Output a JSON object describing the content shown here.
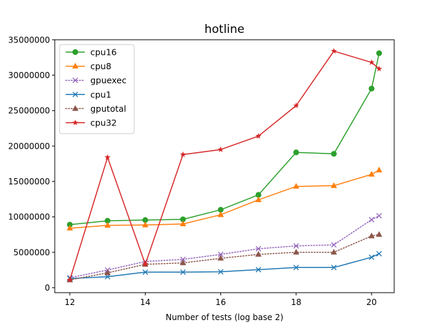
{
  "chart_data": {
    "type": "line",
    "title": "hotline",
    "xlabel": "Number of tests (log base 2)",
    "ylabel": "",
    "xlim": [
      11.6,
      20.6
    ],
    "ylim": [
      -700000,
      35000000
    ],
    "xticks": [
      12,
      14,
      16,
      18,
      20
    ],
    "yticks": [
      0,
      5000000,
      10000000,
      15000000,
      20000000,
      25000000,
      30000000,
      35000000
    ],
    "grid": false,
    "legend_position": "upper left",
    "series": [
      {
        "name": "cpu16",
        "color": "#2ca02c",
        "linestyle": "solid",
        "marker": "circle",
        "x": [
          12,
          13,
          14,
          15,
          16,
          17,
          18,
          19,
          20,
          20.2
        ],
        "y": [
          8900000,
          9450000,
          9550000,
          9650000,
          11000000,
          13100000,
          19100000,
          18900000,
          28100000,
          33100000
        ]
      },
      {
        "name": "cpu8",
        "color": "#ff7f0e",
        "linestyle": "solid",
        "marker": "triangle",
        "x": [
          12,
          13,
          14,
          15,
          16,
          17,
          18,
          19,
          20,
          20.2
        ],
        "y": [
          8400000,
          8800000,
          8850000,
          9000000,
          10300000,
          12400000,
          14300000,
          14400000,
          16000000,
          16600000
        ]
      },
      {
        "name": "gpuexec",
        "color": "#9467bd",
        "linestyle": "dotted",
        "marker": "x",
        "x": [
          12,
          13,
          14,
          15,
          16,
          17,
          18,
          19,
          20,
          20.2
        ],
        "y": [
          1400000,
          2500000,
          3700000,
          4000000,
          4700000,
          5500000,
          5900000,
          6050000,
          9600000,
          10150000
        ]
      },
      {
        "name": "cpu1",
        "color": "#1f77b4",
        "linestyle": "solid",
        "marker": "x",
        "x": [
          12,
          13,
          14,
          15,
          16,
          17,
          18,
          19,
          20,
          20.2
        ],
        "y": [
          1300000,
          1550000,
          2200000,
          2200000,
          2250000,
          2550000,
          2850000,
          2850000,
          4300000,
          4800000
        ]
      },
      {
        "name": "gputotal",
        "color": "#8c564b",
        "linestyle": "dotted",
        "marker": "triangle",
        "x": [
          12,
          13,
          14,
          15,
          16,
          17,
          18,
          19,
          20,
          20.2
        ],
        "y": [
          1100000,
          2100000,
          3300000,
          3500000,
          4150000,
          4700000,
          5000000,
          5000000,
          7300000,
          7500000
        ]
      },
      {
        "name": "cpu32",
        "color": "#d62728",
        "linestyle": "solid",
        "marker": "star",
        "x": [
          12,
          13,
          14,
          15,
          16,
          17,
          18,
          19,
          20,
          20.2
        ],
        "y": [
          1100000,
          18400000,
          3300000,
          18800000,
          19500000,
          21400000,
          25700000,
          33400000,
          31800000,
          30900000
        ]
      }
    ]
  }
}
